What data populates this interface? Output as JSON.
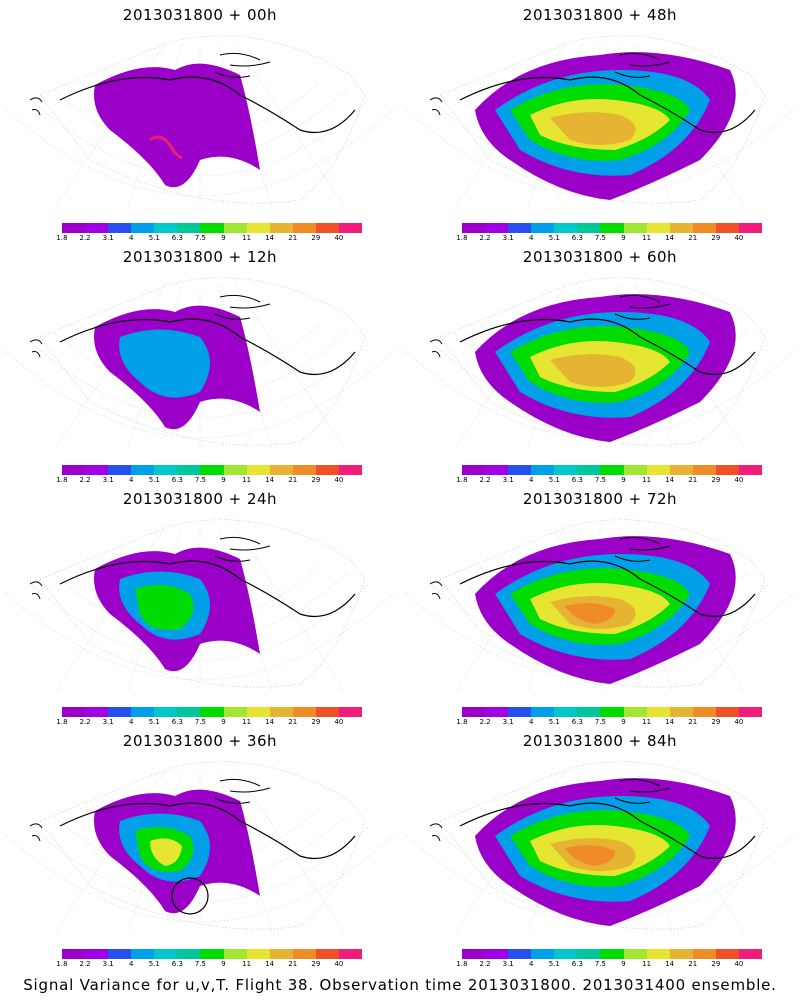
{
  "panels": [
    {
      "title": "2013031800 + 00h",
      "stage": 0
    },
    {
      "title": "2013031800 + 48h",
      "stage": 4
    },
    {
      "title": "2013031800 + 12h",
      "stage": 1
    },
    {
      "title": "2013031800 + 60h",
      "stage": 5
    },
    {
      "title": "2013031800 + 24h",
      "stage": 2
    },
    {
      "title": "2013031800 + 72h",
      "stage": 6
    },
    {
      "title": "2013031800 + 36h",
      "stage": 3
    },
    {
      "title": "2013031800 + 84h",
      "stage": 7
    }
  ],
  "colorbar": {
    "colors": [
      "#9a00c8",
      "#a000e6",
      "#2850f0",
      "#00a0e8",
      "#00c8c8",
      "#00c89a",
      "#00dc00",
      "#a0e632",
      "#e6e632",
      "#e6b432",
      "#f08c28",
      "#f05028",
      "#f01e78"
    ],
    "labels": [
      "1.8",
      "2.2",
      "3.1",
      "4",
      "5.1",
      "6.3",
      "7.5",
      "9",
      "11",
      "14",
      "21",
      "29",
      "40"
    ]
  },
  "footer": "Signal Variance for u,v,T. Flight 38. Observation time 2013031800. 2013031400 ensemble."
}
